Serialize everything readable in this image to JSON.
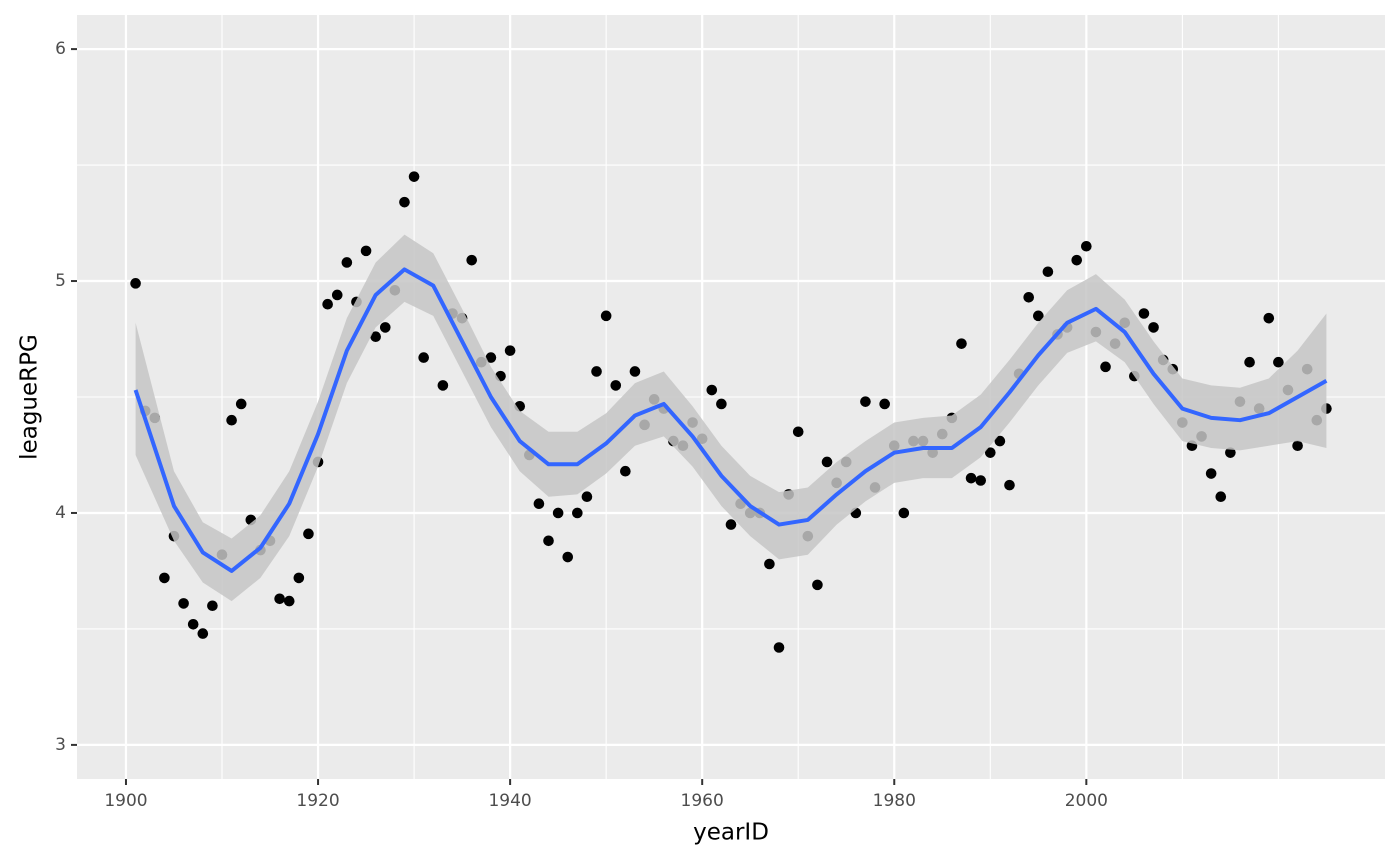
{
  "chart_data": {
    "type": "scatter",
    "x_label": "yearID",
    "y_label": "leagueRPG",
    "xlim": [
      1894.9,
      2031.1
    ],
    "ylim": [
      2.853,
      6.147
    ],
    "xticks": [
      1900,
      1920,
      1940,
      1960,
      1980,
      2000
    ],
    "yticks": [
      3,
      4,
      5,
      6
    ],
    "xminor": [
      1910,
      1930,
      1950,
      1970,
      1990,
      2010,
      2020
    ],
    "yminor": [
      3.5,
      4.5,
      5.5
    ],
    "grid": true,
    "panel_color": "#ebebeb",
    "points": {
      "color": "#000000",
      "x": [
        1901,
        1902,
        1903,
        1904,
        1905,
        1906,
        1907,
        1908,
        1909,
        1910,
        1911,
        1912,
        1913,
        1914,
        1915,
        1916,
        1917,
        1918,
        1919,
        1920,
        1921,
        1922,
        1923,
        1924,
        1925,
        1926,
        1927,
        1928,
        1929,
        1930,
        1931,
        1933,
        1934,
        1935,
        1936,
        1937,
        1938,
        1939,
        1940,
        1941,
        1942,
        1943,
        1944,
        1945,
        1946,
        1947,
        1948,
        1949,
        1950,
        1951,
        1952,
        1953,
        1954,
        1955,
        1956,
        1957,
        1958,
        1959,
        1960,
        1961,
        1962,
        1963,
        1964,
        1965,
        1966,
        1967,
        1968,
        1969,
        1970,
        1971,
        1972,
        1973,
        1974,
        1975,
        1976,
        1977,
        1978,
        1979,
        1980,
        1981,
        1982,
        1983,
        1984,
        1985,
        1986,
        1987,
        1988,
        1989,
        1990,
        1991,
        1992,
        1993,
        1994,
        1995,
        1996,
        1997,
        1998,
        1999,
        2000,
        2001,
        2002,
        2003,
        2004,
        2005,
        2006,
        2007,
        2008,
        2009,
        2010,
        2011,
        2012,
        2013,
        2014,
        2015,
        2016,
        2017,
        2018,
        2019,
        2020,
        2021,
        2022,
        2023,
        2024,
        2025
      ],
      "values": [
        4.99,
        4.44,
        4.41,
        3.72,
        3.9,
        3.61,
        3.52,
        3.48,
        3.6,
        3.82,
        4.4,
        4.47,
        3.97,
        3.84,
        3.88,
        3.63,
        3.62,
        3.72,
        3.91,
        4.22,
        4.9,
        4.94,
        5.08,
        4.91,
        5.13,
        4.76,
        4.8,
        4.96,
        5.34,
        5.45,
        4.67,
        4.55,
        4.86,
        4.84,
        5.09,
        4.65,
        4.67,
        4.59,
        4.7,
        4.46,
        4.25,
        4.04,
        3.88,
        4.0,
        3.81,
        4.0,
        4.07,
        4.61,
        4.85,
        4.55,
        4.18,
        4.61,
        4.38,
        4.49,
        4.45,
        4.31,
        4.29,
        4.39,
        4.32,
        4.53,
        4.47,
        3.95,
        4.04,
        4.0,
        4.0,
        3.78,
        3.42,
        4.08,
        4.35,
        3.9,
        3.69,
        4.22,
        4.13,
        4.22,
        4.0,
        4.48,
        4.11,
        4.47,
        4.29,
        4.0,
        4.31,
        4.31,
        4.26,
        4.34,
        4.41,
        4.73,
        4.15,
        4.14,
        4.26,
        4.31,
        4.12,
        4.6,
        4.93,
        4.85,
        5.04,
        4.77,
        4.8,
        5.09,
        5.15,
        4.78,
        4.63,
        4.73,
        4.82,
        4.59,
        4.86,
        4.8,
        4.66,
        4.62,
        4.39,
        4.29,
        4.33,
        4.17,
        4.07,
        4.26,
        4.48,
        4.65,
        4.45,
        4.84,
        4.65,
        4.53,
        4.29,
        4.62,
        4.4,
        4.45
      ]
    },
    "smooth": {
      "color": "#3366ff",
      "band_color": "#c6c6c6",
      "x": [
        1901,
        1905,
        1908,
        1911,
        1914,
        1917,
        1920,
        1923,
        1926,
        1929,
        1932,
        1935,
        1938,
        1941,
        1944,
        1947,
        1950,
        1953,
        1956,
        1959,
        1962,
        1965,
        1968,
        1971,
        1974,
        1977,
        1980,
        1983,
        1986,
        1989,
        1992,
        1995,
        1998,
        2001,
        2004,
        2007,
        2010,
        2013,
        2016,
        2019,
        2022,
        2025
      ],
      "values": [
        4.53,
        4.03,
        3.83,
        3.75,
        3.85,
        4.04,
        4.34,
        4.7,
        4.94,
        5.05,
        4.98,
        4.74,
        4.5,
        4.31,
        4.21,
        4.21,
        4.3,
        4.42,
        4.47,
        4.33,
        4.16,
        4.03,
        3.95,
        3.97,
        4.08,
        4.18,
        4.26,
        4.28,
        4.28,
        4.37,
        4.52,
        4.68,
        4.82,
        4.88,
        4.78,
        4.6,
        4.45,
        4.41,
        4.4,
        4.43,
        4.5,
        4.57
      ],
      "lower": [
        4.25,
        3.88,
        3.7,
        3.62,
        3.72,
        3.9,
        4.2,
        4.56,
        4.8,
        4.91,
        4.85,
        4.61,
        4.37,
        4.18,
        4.07,
        4.08,
        4.17,
        4.29,
        4.33,
        4.2,
        4.03,
        3.9,
        3.8,
        3.82,
        3.95,
        4.05,
        4.13,
        4.15,
        4.15,
        4.24,
        4.39,
        4.55,
        4.69,
        4.74,
        4.65,
        4.47,
        4.31,
        4.28,
        4.27,
        4.29,
        4.31,
        4.28
      ],
      "upper": [
        4.82,
        4.18,
        3.96,
        3.89,
        3.99,
        4.18,
        4.48,
        4.84,
        5.08,
        5.2,
        5.12,
        4.88,
        4.63,
        4.44,
        4.35,
        4.35,
        4.43,
        4.56,
        4.61,
        4.46,
        4.29,
        4.16,
        4.09,
        4.11,
        4.22,
        4.31,
        4.39,
        4.41,
        4.42,
        4.51,
        4.66,
        4.82,
        4.96,
        5.03,
        4.92,
        4.74,
        4.58,
        4.55,
        4.54,
        4.58,
        4.7,
        4.86
      ]
    }
  }
}
